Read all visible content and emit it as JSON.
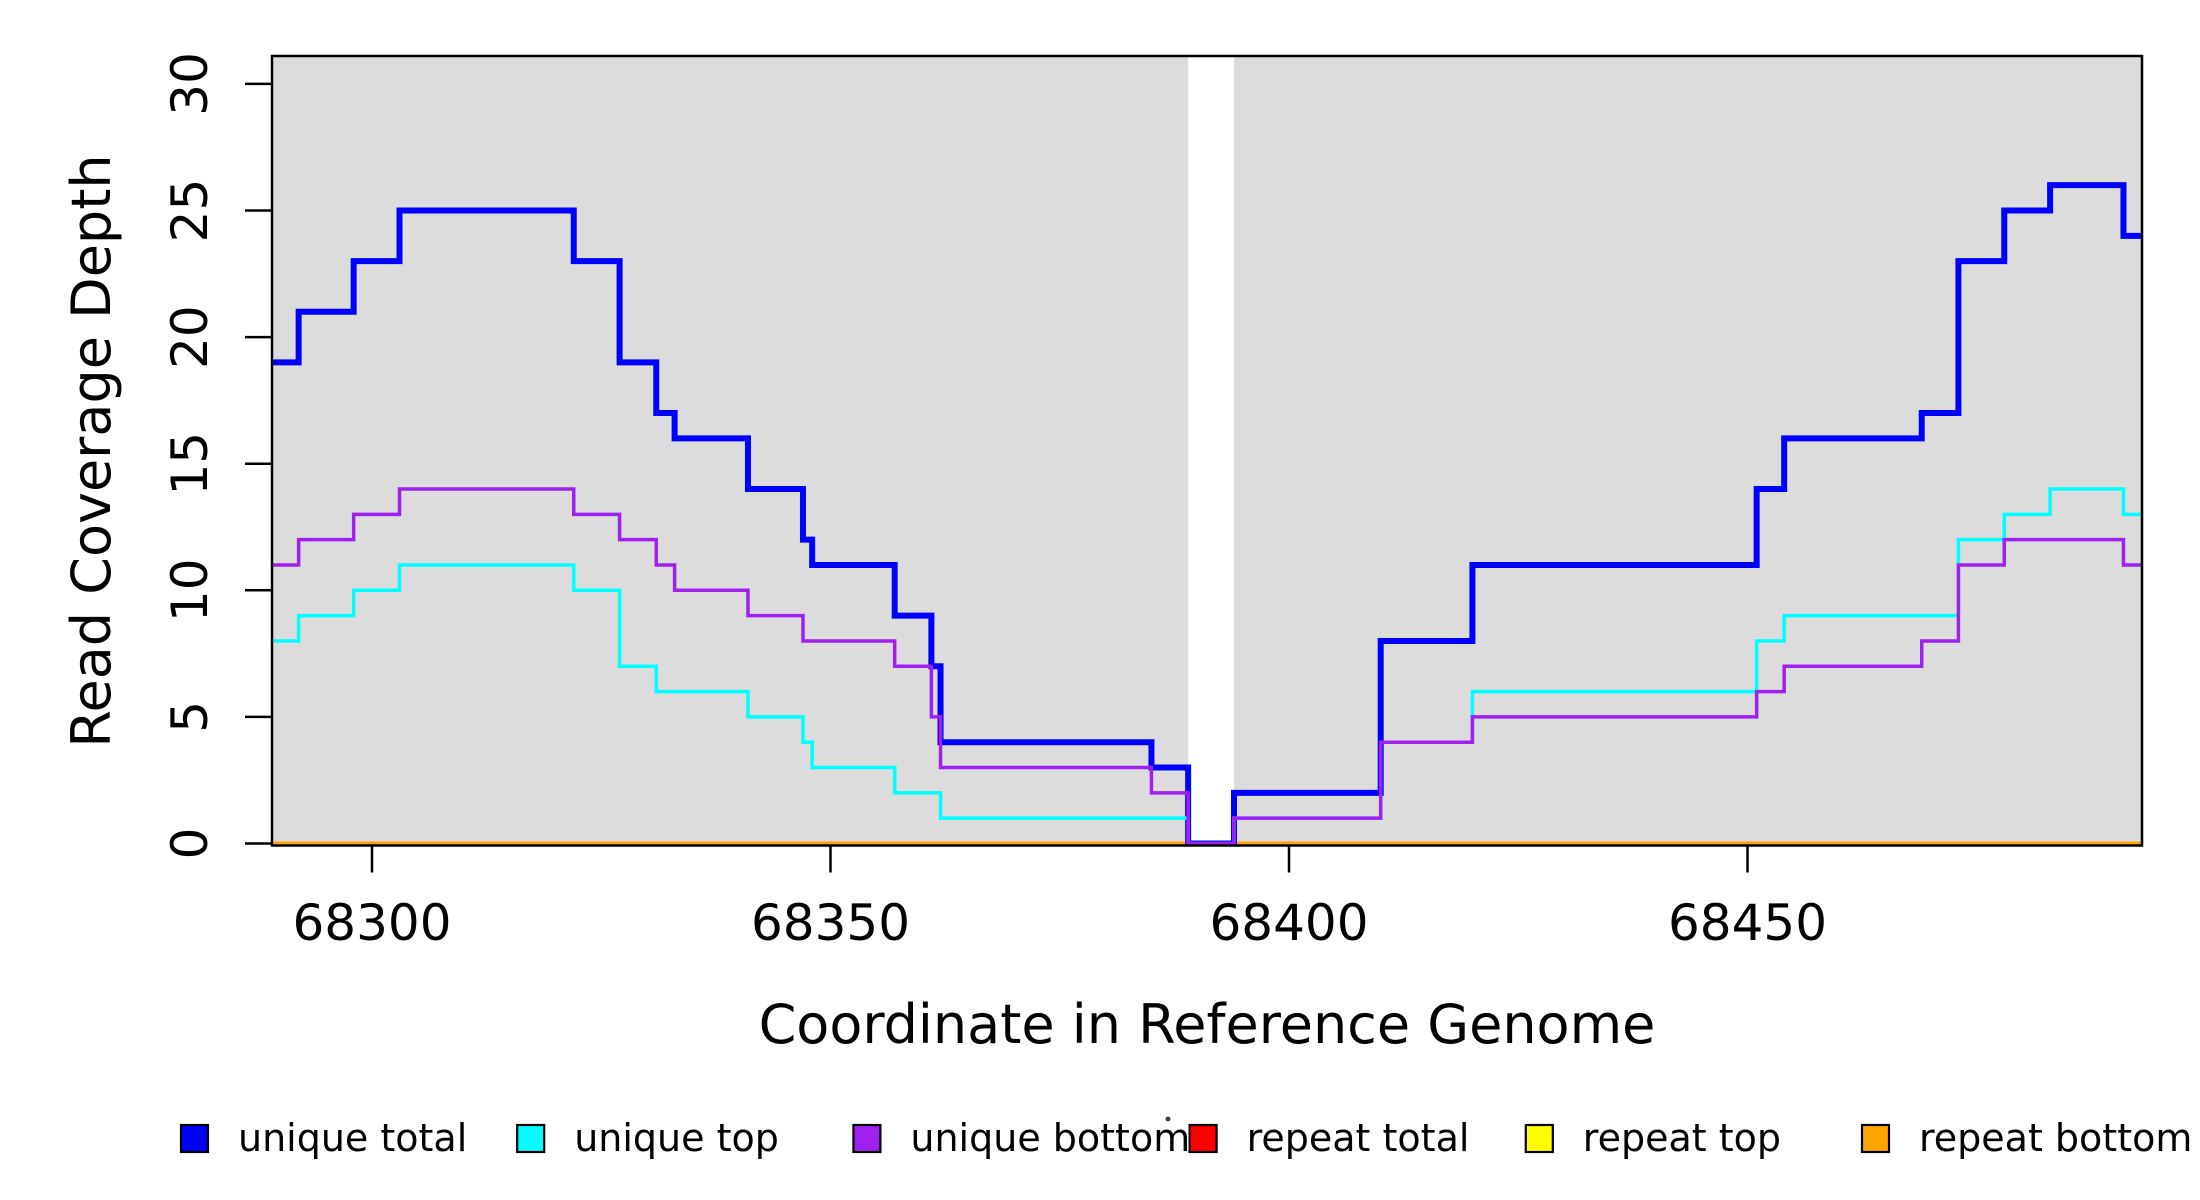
{
  "figure": {
    "background": "#ffffff"
  },
  "chart_data": {
    "type": "line",
    "subtype": "step-post",
    "title": "",
    "xlabel": "Coordinate in Reference Genome",
    "ylabel": "Read Coverage Depth",
    "x_ticks": [
      68300,
      68350,
      68400,
      68450
    ],
    "x_tick_labels": [
      "68300",
      "68350",
      "68400",
      "68450"
    ],
    "y_ticks": [
      0,
      5,
      10,
      15,
      20,
      25,
      30
    ],
    "y_tick_labels": [
      "0",
      "5",
      "10",
      "15",
      "20",
      "25",
      "30"
    ],
    "xlim": [
      68289,
      68493
    ],
    "ylim": [
      0,
      31
    ],
    "grid": false,
    "plot_background": "#dcdcdc",
    "gap_region": {
      "x_start": 68389,
      "x_end": 68394,
      "fill": "#ffffff",
      "note": "white unshaded band where all coverage drops to 0"
    },
    "legend_position": "bottom",
    "axis_color": "#000000",
    "series": [
      {
        "name": "unique total",
        "color": "#0000ff",
        "line_width": 6,
        "x_end": 68493,
        "steps": [
          [
            68289,
            19
          ],
          [
            68292,
            21
          ],
          [
            68298,
            23
          ],
          [
            68303,
            25
          ],
          [
            68322,
            23
          ],
          [
            68327,
            19
          ],
          [
            68331,
            17
          ],
          [
            68333,
            16
          ],
          [
            68341,
            14
          ],
          [
            68347,
            12
          ],
          [
            68348,
            11
          ],
          [
            68357,
            9
          ],
          [
            68361,
            7
          ],
          [
            68362,
            4
          ],
          [
            68385,
            3
          ],
          [
            68389,
            0
          ],
          [
            68394,
            2
          ],
          [
            68410,
            8
          ],
          [
            68420,
            11
          ],
          [
            68451,
            14
          ],
          [
            68454,
            16
          ],
          [
            68469,
            17
          ],
          [
            68473,
            23
          ],
          [
            68478,
            25
          ],
          [
            68483,
            26
          ],
          [
            68491,
            24
          ]
        ]
      },
      {
        "name": "unique top",
        "color": "#00ffff",
        "line_width": 3.5,
        "x_end": 68493,
        "steps": [
          [
            68289,
            8
          ],
          [
            68292,
            9
          ],
          [
            68298,
            10
          ],
          [
            68303,
            11
          ],
          [
            68322,
            10
          ],
          [
            68327,
            7
          ],
          [
            68331,
            6
          ],
          [
            68341,
            5
          ],
          [
            68347,
            4
          ],
          [
            68348,
            3
          ],
          [
            68357,
            2
          ],
          [
            68362,
            1
          ],
          [
            68389,
            0
          ],
          [
            68394,
            1
          ],
          [
            68410,
            4
          ],
          [
            68420,
            6
          ],
          [
            68451,
            8
          ],
          [
            68454,
            9
          ],
          [
            68473,
            12
          ],
          [
            68478,
            13
          ],
          [
            68483,
            14
          ],
          [
            68491,
            13
          ]
        ]
      },
      {
        "name": "unique bottom",
        "color": "#a020f0",
        "line_width": 3.5,
        "x_end": 68493,
        "steps": [
          [
            68289,
            11
          ],
          [
            68292,
            12
          ],
          [
            68298,
            13
          ],
          [
            68303,
            14
          ],
          [
            68322,
            13
          ],
          [
            68327,
            12
          ],
          [
            68331,
            11
          ],
          [
            68333,
            10
          ],
          [
            68341,
            9
          ],
          [
            68347,
            8
          ],
          [
            68357,
            7
          ],
          [
            68361,
            5
          ],
          [
            68362,
            3
          ],
          [
            68385,
            2
          ],
          [
            68389,
            0
          ],
          [
            68394,
            1
          ],
          [
            68410,
            4
          ],
          [
            68420,
            5
          ],
          [
            68451,
            6
          ],
          [
            68454,
            7
          ],
          [
            68469,
            8
          ],
          [
            68473,
            11
          ],
          [
            68478,
            12
          ],
          [
            68491,
            11
          ]
        ]
      },
      {
        "name": "repeat total",
        "color": "#ff0000",
        "line_width": 3.5,
        "x_end": 68493,
        "steps": [
          [
            68289,
            0
          ]
        ]
      },
      {
        "name": "repeat top",
        "color": "#ffff00",
        "line_width": 3.5,
        "x_end": 68493,
        "steps": [
          [
            68289,
            0
          ]
        ]
      },
      {
        "name": "repeat bottom",
        "color": "#ffa500",
        "line_width": 4,
        "x_end": 68493,
        "steps": [
          [
            68289,
            0
          ]
        ]
      }
    ]
  }
}
